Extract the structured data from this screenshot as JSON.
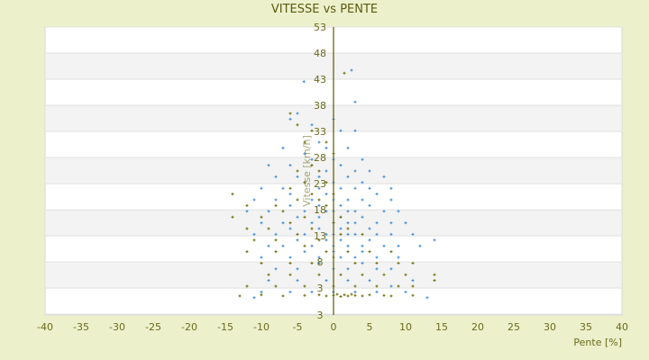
{
  "chart_data": {
    "type": "scatter",
    "title": "VITESSE vs PENTE",
    "xlabel": "Pente [%]",
    "ylabel": "Vitesse [km/h]",
    "xlim": [
      -40,
      40
    ],
    "ylim": [
      3,
      53
    ],
    "xticks": [
      -40,
      -35,
      -30,
      -25,
      -20,
      -15,
      -10,
      -5,
      0,
      5,
      10,
      15,
      20,
      25,
      30,
      35,
      40
    ],
    "ytick_labels": [
      "53",
      "48",
      "43",
      "38",
      "33",
      "28",
      "23",
      "18",
      "13",
      "8",
      "3",
      "3"
    ],
    "grid": "horizontal alternating bands",
    "colors": {
      "background": "#ecf1cc",
      "plot": "#ffffff",
      "band": "#f3f3f3",
      "axis": "#5a5a00",
      "series_blue": "#3a8ad6",
      "series_olive": "#6b6b00"
    },
    "series": [
      {
        "color": "#3a8ad6",
        "points": [
          [
            -4.1,
            43.5
          ],
          [
            2.5,
            45.5
          ],
          [
            3,
            40
          ],
          [
            -5,
            38
          ],
          [
            -6,
            37
          ],
          [
            -3,
            36
          ],
          [
            0,
            37
          ],
          [
            1,
            35
          ],
          [
            3,
            35
          ],
          [
            -2,
            33
          ],
          [
            -7,
            32
          ],
          [
            -4,
            31
          ],
          [
            -1,
            32
          ],
          [
            2,
            32
          ],
          [
            4,
            30
          ],
          [
            -9,
            29
          ],
          [
            -6,
            29
          ],
          [
            -3,
            30
          ],
          [
            0,
            30
          ],
          [
            1,
            29
          ],
          [
            3,
            28
          ],
          [
            5,
            28
          ],
          [
            -8,
            27
          ],
          [
            -5,
            27
          ],
          [
            -2,
            27
          ],
          [
            -1,
            28
          ],
          [
            2,
            27
          ],
          [
            4,
            26
          ],
          [
            7,
            27
          ],
          [
            -10,
            25
          ],
          [
            -7,
            25
          ],
          [
            -4,
            26
          ],
          [
            -2,
            25
          ],
          [
            0,
            26
          ],
          [
            1,
            25
          ],
          [
            3,
            25
          ],
          [
            5,
            25
          ],
          [
            8,
            25
          ],
          [
            -11,
            23
          ],
          [
            -8,
            23
          ],
          [
            -6,
            24
          ],
          [
            -3,
            23
          ],
          [
            -1,
            24
          ],
          [
            0,
            23
          ],
          [
            2,
            23
          ],
          [
            4,
            23
          ],
          [
            6,
            24
          ],
          [
            8,
            23
          ],
          [
            -12,
            21
          ],
          [
            -9,
            21
          ],
          [
            -6,
            22
          ],
          [
            -4,
            21
          ],
          [
            -2,
            22
          ],
          [
            -1,
            21
          ],
          [
            0,
            21
          ],
          [
            1,
            22
          ],
          [
            2,
            21
          ],
          [
            3,
            21
          ],
          [
            5,
            22
          ],
          [
            7,
            21
          ],
          [
            9,
            21
          ],
          [
            -10,
            19
          ],
          [
            -7,
            19
          ],
          [
            -5,
            20
          ],
          [
            -3,
            19
          ],
          [
            -2,
            20
          ],
          [
            0,
            19
          ],
          [
            1,
            20
          ],
          [
            2,
            19
          ],
          [
            3,
            19
          ],
          [
            4,
            20
          ],
          [
            6,
            19
          ],
          [
            8,
            19
          ],
          [
            10,
            19
          ],
          [
            -11,
            17
          ],
          [
            -8,
            17
          ],
          [
            -6,
            18
          ],
          [
            -4,
            17
          ],
          [
            -2,
            18
          ],
          [
            -1,
            17
          ],
          [
            0,
            17
          ],
          [
            1,
            18
          ],
          [
            2,
            17
          ],
          [
            3,
            17
          ],
          [
            5,
            18
          ],
          [
            6,
            17
          ],
          [
            8,
            17
          ],
          [
            11,
            17
          ],
          [
            14,
            16
          ],
          [
            -9,
            15
          ],
          [
            -7,
            15
          ],
          [
            -5,
            16
          ],
          [
            -3,
            15
          ],
          [
            -1,
            16
          ],
          [
            0,
            15
          ],
          [
            1,
            16
          ],
          [
            2,
            15
          ],
          [
            4,
            15
          ],
          [
            5,
            16
          ],
          [
            7,
            15
          ],
          [
            9,
            15
          ],
          [
            12,
            15
          ],
          [
            -10,
            13
          ],
          [
            -6,
            13
          ],
          [
            -4,
            14
          ],
          [
            -2,
            13
          ],
          [
            0,
            14
          ],
          [
            1,
            13
          ],
          [
            3,
            13
          ],
          [
            4,
            14
          ],
          [
            6,
            13
          ],
          [
            9,
            13
          ],
          [
            -8,
            11
          ],
          [
            -5,
            11
          ],
          [
            -2,
            12
          ],
          [
            0,
            11
          ],
          [
            2,
            11
          ],
          [
            4,
            12
          ],
          [
            6,
            11
          ],
          [
            8,
            11
          ],
          [
            -9,
            9
          ],
          [
            -5,
            9
          ],
          [
            -1,
            9
          ],
          [
            2,
            9
          ],
          [
            5,
            9
          ],
          [
            8,
            8
          ],
          [
            11,
            9
          ],
          [
            -10,
            7
          ],
          [
            -6,
            7
          ],
          [
            -3,
            7
          ],
          [
            0,
            7
          ],
          [
            3,
            7
          ],
          [
            6,
            7
          ],
          [
            10,
            7
          ],
          [
            -11,
            6
          ],
          [
            13,
            6
          ]
        ]
      },
      {
        "color": "#6b6b00",
        "points": [
          [
            1.5,
            45
          ],
          [
            -6,
            38
          ],
          [
            -5,
            36
          ],
          [
            -3,
            35
          ],
          [
            -4,
            33
          ],
          [
            -1,
            33
          ],
          [
            0,
            31
          ],
          [
            -3,
            29
          ],
          [
            -5,
            28
          ],
          [
            -2,
            28
          ],
          [
            -4,
            26
          ],
          [
            -1,
            26
          ],
          [
            -6,
            25
          ],
          [
            -3,
            24
          ],
          [
            -14,
            24
          ],
          [
            -12,
            22
          ],
          [
            -8,
            22
          ],
          [
            -5,
            23
          ],
          [
            -2,
            23
          ],
          [
            0,
            24
          ],
          [
            -14,
            20
          ],
          [
            -10,
            20
          ],
          [
            -7,
            21
          ],
          [
            -4,
            20
          ],
          [
            -1,
            22
          ],
          [
            1,
            20
          ],
          [
            -12,
            18
          ],
          [
            -9,
            18
          ],
          [
            -6,
            19
          ],
          [
            -3,
            18
          ],
          [
            0,
            19
          ],
          [
            2,
            18
          ],
          [
            -11,
            16
          ],
          [
            -8,
            16
          ],
          [
            -5,
            17
          ],
          [
            -2,
            16
          ],
          [
            1,
            17
          ],
          [
            4,
            17
          ],
          [
            -12,
            14
          ],
          [
            -8,
            14
          ],
          [
            -4,
            15
          ],
          [
            -1,
            14
          ],
          [
            2,
            14
          ],
          [
            5,
            14
          ],
          [
            8,
            14
          ],
          [
            -10,
            12
          ],
          [
            -6,
            12
          ],
          [
            -3,
            12
          ],
          [
            0,
            13
          ],
          [
            3,
            12
          ],
          [
            6,
            12
          ],
          [
            9,
            12
          ],
          [
            11,
            12
          ],
          [
            -9,
            10
          ],
          [
            -6,
            10
          ],
          [
            -2,
            10
          ],
          [
            1,
            10
          ],
          [
            4,
            10
          ],
          [
            7,
            10
          ],
          [
            10,
            10
          ],
          [
            14,
            10
          ],
          [
            -12,
            8
          ],
          [
            -8,
            8
          ],
          [
            -4,
            8
          ],
          [
            0,
            8
          ],
          [
            3,
            8
          ],
          [
            6,
            8
          ],
          [
            9,
            8
          ],
          [
            11,
            8
          ],
          [
            14,
            9
          ],
          [
            -13,
            6.3
          ],
          [
            -10,
            6.5
          ],
          [
            -7,
            6.3
          ],
          [
            -4,
            6.4
          ],
          [
            -2,
            6.5
          ],
          [
            -1,
            6.3
          ],
          [
            0,
            6.4
          ],
          [
            0.5,
            6.6
          ],
          [
            1,
            6.2
          ],
          [
            1.5,
            6.5
          ],
          [
            2,
            6.3
          ],
          [
            2.5,
            6.6
          ],
          [
            3,
            6.4
          ],
          [
            4,
            6.3
          ],
          [
            5,
            6.5
          ],
          [
            7,
            6.4
          ],
          [
            8,
            6.3
          ],
          [
            11,
            6.4
          ]
        ]
      }
    ]
  }
}
